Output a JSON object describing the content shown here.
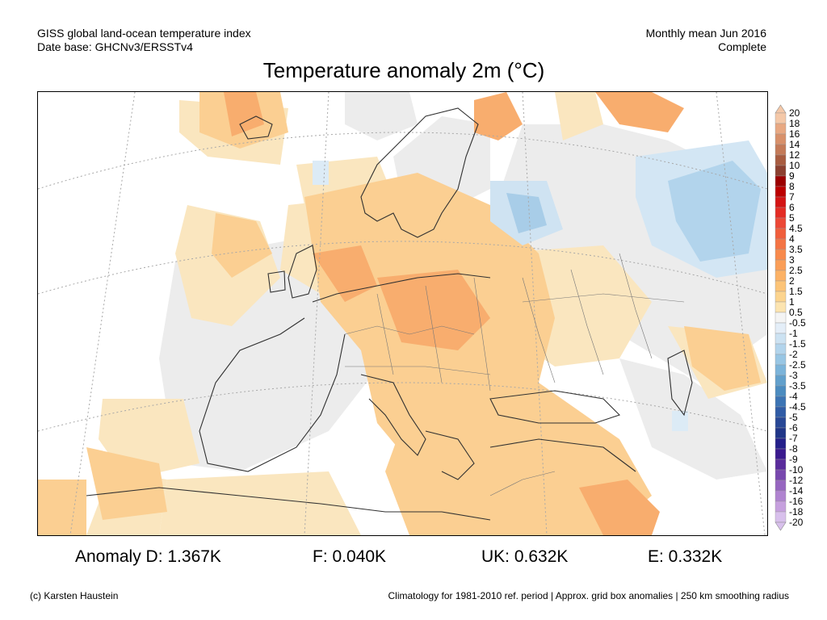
{
  "header": {
    "line1_left": "GISS global land-ocean temperature index",
    "line2_left": "Date base: GHCNv3/ERSSTv4",
    "line1_right": "Monthly mean Jun 2016",
    "line2_right": "Complete"
  },
  "title": "Temperature anomaly 2m (°C)",
  "colorbar": {
    "labels": [
      "20",
      "18",
      "16",
      "14",
      "12",
      "10",
      "9",
      "8",
      "7",
      "6",
      "5",
      "4.5",
      "4",
      "3.5",
      "3",
      "2.5",
      "2",
      "1.5",
      "1",
      "0.5",
      "-0.5",
      "-1",
      "-1.5",
      "-2",
      "-2.5",
      "-3",
      "-3.5",
      "-4",
      "-4.5",
      "-5",
      "-6",
      "-7",
      "-8",
      "-9",
      "-10",
      "-12",
      "-14",
      "-16",
      "-18",
      "-20"
    ],
    "colors": [
      "#f4c8a8",
      "#e8a882",
      "#d8906a",
      "#c47a58",
      "#a85c40",
      "#8c4030",
      "#9c0000",
      "#bc0000",
      "#d41414",
      "#e42c24",
      "#ec4836",
      "#f05e3c",
      "#f47444",
      "#f88a4c",
      "#fa9e58",
      "#fcb266",
      "#fcc478",
      "#fcd48e",
      "#fce4b0",
      "#f4f4f4",
      "#e4eef8",
      "#cce2f2",
      "#b2d4ec",
      "#98c6e4",
      "#7cb4da",
      "#62a0cc",
      "#4c8cc0",
      "#3c74b4",
      "#305ca6",
      "#284896",
      "#203688",
      "#24208a",
      "#3a1a8e",
      "#5a2c9c",
      "#7848ae",
      "#9666c0",
      "#b084d0",
      "#c6a0de",
      "#d8c0ec"
    ]
  },
  "stats": {
    "d": "Anomaly D: 1.367K",
    "f": "F: 0.040K",
    "uk": "UK: 0.632K",
    "e": "E: 0.332K"
  },
  "footer": {
    "left": "(c) Karsten Haustein",
    "right": "Climatology for 1981-2010 ref. period | Approx. grid box anomalies | 250 km smoothing radius"
  }
}
